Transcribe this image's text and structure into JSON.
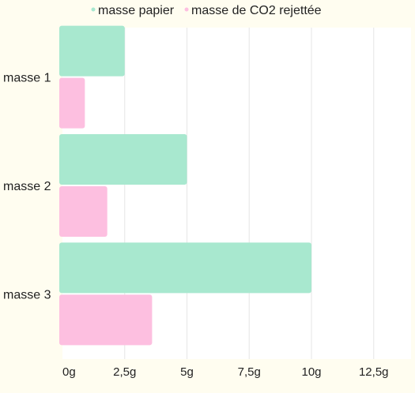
{
  "chart_data": {
    "type": "bar",
    "orientation": "horizontal",
    "categories": [
      "masse 1",
      "masse 2",
      "masse 3"
    ],
    "series": [
      {
        "name": "masse papier",
        "values": [
          2.5,
          5,
          10
        ],
        "color": "#a8e8cf"
      },
      {
        "name": "masse de CO2 rejettée",
        "values": [
          0.9,
          1.8,
          3.6
        ],
        "color": "#fdbfe0"
      }
    ],
    "xlim": [
      0,
      14
    ],
    "x_ticks": [
      0,
      2.5,
      5,
      7.5,
      10,
      12.5
    ],
    "x_tick_labels": [
      "0g",
      "2,5g",
      "5g",
      "7,5g",
      "10g",
      "12,5g"
    ],
    "grid": "vertical",
    "legend": "top"
  }
}
